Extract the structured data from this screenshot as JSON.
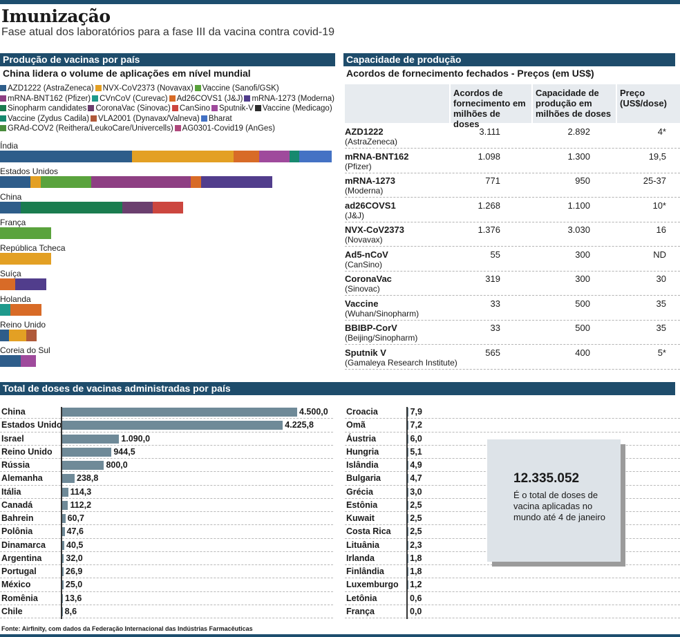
{
  "header": {
    "title": "Imunização",
    "subtitle": "Fase atual dos laboratórios para a fase III da vacina contra covid-19"
  },
  "colors": {
    "brand_bar": "#1d4e6e",
    "bar_gray": "#6f8a98"
  },
  "production": {
    "header": "Produção de vacinas por país",
    "subtitle": "China lidera o volume de aplicações em nível mundial",
    "legend_rows": [
      [
        {
          "label": "AZD1222 (AstraZeneca)",
          "color": "#2e5d8a"
        },
        {
          "label": "NVX-CoV2373 (Novavax)",
          "color": "#e3a024"
        },
        {
          "label": "Vaccine (Sanofi/GSK)",
          "color": "#5aa33d"
        }
      ],
      [
        {
          "label": "mRNA-BNT162 (Pfizer)",
          "color": "#8e3f83"
        },
        {
          "label": "CVnCoV (Curevac)",
          "color": "#1f9a8c"
        },
        {
          "label": "Ad26COVS1 (J&J)",
          "color": "#d86b27"
        },
        {
          "label": "mRNA-1273 (Moderna)",
          "color": "#513d8c"
        }
      ],
      [
        {
          "label": "Sinopharm candidates",
          "color": "#1a7c4f"
        },
        {
          "label": "CoronaVac (Sinovac)",
          "color": "#6b3f6e"
        },
        {
          "label": "CanSino",
          "color": "#cc463f"
        },
        {
          "label": "Sputnik-V",
          "color": "#9f4a9c"
        },
        {
          "label": "Vaccine (Medicago)",
          "color": "#2d2d2d"
        }
      ],
      [
        {
          "label": "Vaccine (Zydus Cadila)",
          "color": "#17896f"
        },
        {
          "label": "VLA2001 (Dynavax/Valneva)",
          "color": "#b05a3a"
        },
        {
          "label": "Bharat",
          "color": "#4472c4"
        }
      ],
      [
        {
          "label": "GRAd-COV2 (Reithera/LeukoCare/Univercells)",
          "color": "#4a8c3c"
        },
        {
          "label": "AG0301-Covid19 (AnGes)",
          "color": "#b04a7d"
        }
      ]
    ],
    "countries": [
      {
        "name": "Índia",
        "segments": [
          {
            "color": "#2e5d8a",
            "value": 191
          },
          {
            "color": "#e3a024",
            "value": 147
          },
          {
            "color": "#d86b27",
            "value": 37
          },
          {
            "color": "#9f4a9c",
            "value": 44
          },
          {
            "color": "#17896f",
            "value": 14
          },
          {
            "color": "#4472c4",
            "value": 47
          }
        ]
      },
      {
        "name": "Estados Unidos",
        "segments": [
          {
            "color": "#2e5d8a",
            "value": 44
          },
          {
            "color": "#e3a024",
            "value": 15
          },
          {
            "color": "#5aa33d",
            "value": 73
          },
          {
            "color": "#8e3f83",
            "value": 144
          },
          {
            "color": "#d86b27",
            "value": 15
          },
          {
            "color": "#513d8c",
            "value": 103
          }
        ]
      },
      {
        "name": "China",
        "segments": [
          {
            "color": "#2e5d8a",
            "value": 30
          },
          {
            "color": "#1a7c4f",
            "value": 147
          },
          {
            "color": "#6b3f6e",
            "value": 44
          },
          {
            "color": "#cc463f",
            "value": 44
          }
        ]
      },
      {
        "name": "França",
        "segments": [
          {
            "color": "#5aa33d",
            "value": 74
          }
        ]
      },
      {
        "name": "República Tcheca",
        "segments": [
          {
            "color": "#e3a024",
            "value": 74
          }
        ]
      },
      {
        "name": "Suíça",
        "segments": [
          {
            "color": "#d86b27",
            "value": 22
          },
          {
            "color": "#513d8c",
            "value": 45
          }
        ]
      },
      {
        "name": "Holanda",
        "segments": [
          {
            "color": "#1f9a8c",
            "value": 15
          },
          {
            "color": "#d86b27",
            "value": 45
          }
        ]
      },
      {
        "name": "Reino Unido",
        "segments": [
          {
            "color": "#2e5d8a",
            "value": 13
          },
          {
            "color": "#e3a024",
            "value": 25
          },
          {
            "color": "#b05a3a",
            "value": 15
          }
        ]
      },
      {
        "name": "Coreia do Sul",
        "segments": [
          {
            "color": "#2e5d8a",
            "value": 30
          },
          {
            "color": "#9f4a9c",
            "value": 22
          }
        ]
      }
    ]
  },
  "capacity": {
    "header": "Capacidade de produção",
    "subtitle": "Acordos de fornecimento fechados - Preços (em US$)",
    "columns": [
      "Acordos de fornecimento em milhões de doses",
      "Capacidade de produção em milhões de doses",
      "Preço (US$/dose)"
    ],
    "rows": [
      {
        "name": "AZD1222",
        "company": "(AstraZeneca)",
        "agreements": "3.111",
        "capacity": "2.892",
        "price": "4*"
      },
      {
        "name": "mRNA-BNT162",
        "company": "(Pfizer)",
        "agreements": "1.098",
        "capacity": "1.300",
        "price": "19,5"
      },
      {
        "name": "mRNA-1273",
        "company": "(Moderna)",
        "agreements": "771",
        "capacity": "950",
        "price": "25-37"
      },
      {
        "name": "ad26COVS1",
        "company": "(J&J)",
        "agreements": "1.268",
        "capacity": "1.100",
        "price": "10*"
      },
      {
        "name": "NVX-CoV2373",
        "company": "(Novavax)",
        "agreements": "1.376",
        "capacity": "3.030",
        "price": "16"
      },
      {
        "name": "Ad5-nCoV",
        "company": "(CanSino)",
        "agreements": "55",
        "capacity": "300",
        "price": "ND"
      },
      {
        "name": "CoronaVac",
        "company": "(Sinovac)",
        "agreements": "319",
        "capacity": "300",
        "price": "30"
      },
      {
        "name": "Vaccine",
        "company": "(Wuhan/Sinopharm)",
        "agreements": "33",
        "capacity": "500",
        "price": "35"
      },
      {
        "name": "BBIBP-CorV",
        "company": "(Beijing/Sinopharm)",
        "agreements": "33",
        "capacity": "500",
        "price": "35"
      },
      {
        "name": "Sputnik V",
        "company": "(Gamaleya Research Institute)",
        "agreements": "565",
        "capacity": "400",
        "price": "5*"
      }
    ]
  },
  "doses": {
    "header": "Total de doses de vacinas administradas por país",
    "left": [
      {
        "country": "China",
        "value": 4500.0,
        "label": "4.500,0"
      },
      {
        "country": "Estados Unidos",
        "value": 4225.8,
        "label": "4.225,8"
      },
      {
        "country": "Israel",
        "value": 1090.0,
        "label": "1.090,0"
      },
      {
        "country": "Reino Unido",
        "value": 944.5,
        "label": "944,5"
      },
      {
        "country": "Rússia",
        "value": 800.0,
        "label": "800,0"
      },
      {
        "country": "Alemanha",
        "value": 238.8,
        "label": "238,8"
      },
      {
        "country": "Itália",
        "value": 114.3,
        "label": "114,3"
      },
      {
        "country": "Canadá",
        "value": 112.2,
        "label": "112,2"
      },
      {
        "country": "Bahrein",
        "value": 60.7,
        "label": "60,7"
      },
      {
        "country": "Polônia",
        "value": 47.6,
        "label": "47,6"
      },
      {
        "country": "Dinamarca",
        "value": 40.5,
        "label": "40,5"
      },
      {
        "country": "Argentina",
        "value": 32.0,
        "label": "32,0"
      },
      {
        "country": "Portugal",
        "value": 26.9,
        "label": "26,9"
      },
      {
        "country": "México",
        "value": 25.0,
        "label": "25,0"
      },
      {
        "country": "Romênia",
        "value": 13.6,
        "label": "13,6"
      },
      {
        "country": "Chile",
        "value": 8.6,
        "label": "8,6"
      }
    ],
    "right": [
      {
        "country": "Croacia",
        "value": 7.9,
        "label": "7,9"
      },
      {
        "country": "Omã",
        "value": 7.2,
        "label": "7,2"
      },
      {
        "country": "Áustria",
        "value": 6.0,
        "label": "6,0"
      },
      {
        "country": "Hungria",
        "value": 5.1,
        "label": "5,1"
      },
      {
        "country": "Islândia",
        "value": 4.9,
        "label": "4,9"
      },
      {
        "country": "Bulgaria",
        "value": 4.7,
        "label": "4,7"
      },
      {
        "country": "Grécia",
        "value": 3.0,
        "label": "3,0"
      },
      {
        "country": "Estônia",
        "value": 2.5,
        "label": "2,5"
      },
      {
        "country": "Kuwait",
        "value": 2.5,
        "label": "2,5"
      },
      {
        "country": "Costa Rica",
        "value": 2.5,
        "label": "2,5"
      },
      {
        "country": "Lituânia",
        "value": 2.3,
        "label": "2,3"
      },
      {
        "country": "Irlanda",
        "value": 1.8,
        "label": "1,8"
      },
      {
        "country": "Finlândia",
        "value": 1.8,
        "label": "1,8"
      },
      {
        "country": "Luxemburgo",
        "value": 1.2,
        "label": "1,2"
      },
      {
        "country": "Letônia",
        "value": 0.6,
        "label": "0,6"
      },
      {
        "country": "França",
        "value": 0.0,
        "label": "0,0"
      }
    ],
    "callout": {
      "number": "12.335.052",
      "text": "É o total de doses de vacina aplicadas no mundo até 4 de janeiro"
    }
  },
  "source": "Fonte: Airfinity, com dados da Federação Internacional das Indústrias Farmacêuticas",
  "chart_data": [
    {
      "type": "bar",
      "title": "Produção de vacinas por país",
      "subtitle": "China lidera o volume de aplicações em nível mundial",
      "stacked": true,
      "categories": [
        "Índia",
        "Estados Unidos",
        "China",
        "França",
        "República Tcheca",
        "Suíça",
        "Holanda",
        "Reino Unido",
        "Coreia do Sul"
      ],
      "legend": [
        "AZD1222 (AstraZeneca)",
        "NVX-CoV2373 (Novavax)",
        "Vaccine (Sanofi/GSK)",
        "mRNA-BNT162 (Pfizer)",
        "CVnCoV (Curevac)",
        "Ad26COVS1 (J&J)",
        "mRNA-1273 (Moderna)",
        "Sinopharm candidates",
        "CoronaVac (Sinovac)",
        "CanSino",
        "Sputnik-V",
        "Vaccine (Medicago)",
        "Vaccine (Zydus Cadila)",
        "VLA2001 (Dynavax/Valneva)",
        "Bharat",
        "GRAd-COV2 (Reithera/LeukoCare/Univercells)",
        "AG0301-Covid19 (AnGes)"
      ]
    },
    {
      "type": "table",
      "title": "Capacidade de produção",
      "subtitle": "Acordos de fornecimento fechados - Preços (em US$)"
    },
    {
      "type": "bar",
      "title": "Total de doses de vacinas administradas por país",
      "orientation": "horizontal",
      "categories": [
        "China",
        "Estados Unidos",
        "Israel",
        "Reino Unido",
        "Rússia",
        "Alemanha",
        "Itália",
        "Canadá",
        "Bahrein",
        "Polônia",
        "Dinamarca",
        "Argentina",
        "Portugal",
        "México",
        "Romênia",
        "Chile",
        "Croacia",
        "Omã",
        "Áustria",
        "Hungria",
        "Islândia",
        "Bulgaria",
        "Grécia",
        "Estônia",
        "Kuwait",
        "Costa Rica",
        "Lituânia",
        "Irlanda",
        "Finlândia",
        "Luxemburgo",
        "Letônia",
        "França"
      ],
      "values": [
        4500.0,
        4225.8,
        1090.0,
        944.5,
        800.0,
        238.8,
        114.3,
        112.2,
        60.7,
        47.6,
        40.5,
        32.0,
        26.9,
        25.0,
        13.6,
        8.6,
        7.9,
        7.2,
        6.0,
        5.1,
        4.9,
        4.7,
        3.0,
        2.5,
        2.5,
        2.5,
        2.3,
        1.8,
        1.8,
        1.2,
        0.6,
        0.0
      ]
    }
  ]
}
